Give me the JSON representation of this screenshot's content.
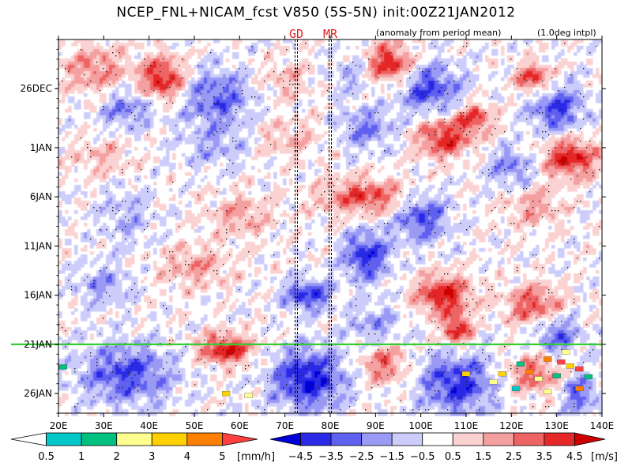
{
  "chart_data": {
    "type": "heatmap",
    "title": "NCEP_FNL+NICAM_fcst V850 (5S-5N) init:00Z21JAN2012",
    "subtitle_left": "(anomaly from period mean)",
    "subtitle_right": "(1.0deg intpl)",
    "x_ticks": [
      "20E",
      "30E",
      "40E",
      "50E",
      "60E",
      "70E",
      "80E",
      "90E",
      "100E",
      "110E",
      "120E",
      "130E",
      "140E"
    ],
    "x_range": [
      20,
      140
    ],
    "y_ticks": [
      {
        "label": "26DEC",
        "day": 5
      },
      {
        "label": "1JAN",
        "day": 11
      },
      {
        "label": "6JAN",
        "day": 16
      },
      {
        "label": "11JAN",
        "day": 21
      },
      {
        "label": "16JAN",
        "day": 26
      },
      {
        "label": "21JAN",
        "day": 31
      },
      {
        "label": "26JAN",
        "day": 36
      }
    ],
    "y_range_days": [
      0,
      38
    ],
    "forecast_start_label": "21JAN",
    "vertical_markers": [
      {
        "label": "GD",
        "lon": 72.5
      },
      {
        "label": "MR",
        "lon": 80
      }
    ],
    "colorbar_precip": {
      "labels": [
        "0.5",
        "1",
        "2",
        "3",
        "4",
        "5"
      ],
      "unit": "[mm/h]",
      "colors": [
        "#ffffff",
        "#00c8c8",
        "#00c080",
        "#ffff90",
        "#ffd000",
        "#ff8000",
        "#ff4040"
      ]
    },
    "colorbar_wind": {
      "labels": [
        "−4.5",
        "−3.5",
        "−2.5",
        "−1.5",
        "−0.5",
        "0.5",
        "1.5",
        "2.5",
        "3.5",
        "4.5"
      ],
      "unit": "[m/s]",
      "colors": [
        "#0000d8",
        "#2a2ae6",
        "#6060f0",
        "#9a9af5",
        "#cdcdfb",
        "#ffffff",
        "#fbd2d2",
        "#f5a0a0",
        "#ee6464",
        "#e42828",
        "#cc0000"
      ]
    },
    "blobs": [
      {
        "lon": 43,
        "day": 4,
        "v": 4.5,
        "rl": 5,
        "rd": 2.2
      },
      {
        "lon": 28,
        "day": 3,
        "v": 2.5,
        "rl": 7,
        "rd": 2.5
      },
      {
        "lon": 35,
        "day": 7,
        "v": -2.5,
        "rl": 6,
        "rd": 2
      },
      {
        "lon": 55,
        "day": 6,
        "v": -3,
        "rl": 8,
        "rd": 3
      },
      {
        "lon": 70,
        "day": 4,
        "v": 1.5,
        "rl": 6,
        "rd": 2
      },
      {
        "lon": 85,
        "day": 3.5,
        "v": -1.5,
        "rl": 5,
        "rd": 2
      },
      {
        "lon": 93,
        "day": 2.5,
        "v": 4.5,
        "rl": 5,
        "rd": 2
      },
      {
        "lon": 102,
        "day": 5,
        "v": -3.5,
        "rl": 7,
        "rd": 2.5
      },
      {
        "lon": 125,
        "day": 4,
        "v": 4,
        "rl": 4,
        "rd": 1.5
      },
      {
        "lon": 130,
        "day": 7,
        "v": -3.5,
        "rl": 6,
        "rd": 2.5
      },
      {
        "lon": 105,
        "day": 10,
        "v": 4,
        "rl": 6,
        "rd": 2
      },
      {
        "lon": 112,
        "day": 8,
        "v": 3.5,
        "rl": 4,
        "rd": 1.5
      },
      {
        "lon": 133,
        "day": 12,
        "v": 4.5,
        "rl": 6,
        "rd": 2
      },
      {
        "lon": 88,
        "day": 9,
        "v": -2.5,
        "rl": 6,
        "rd": 2
      },
      {
        "lon": 70,
        "day": 10,
        "v": 1.5,
        "rl": 8,
        "rd": 2
      },
      {
        "lon": 55,
        "day": 11,
        "v": -1.5,
        "rl": 8,
        "rd": 2
      },
      {
        "lon": 30,
        "day": 12,
        "v": 1.5,
        "rl": 7,
        "rd": 2
      },
      {
        "lon": 120,
        "day": 13,
        "v": -2.5,
        "rl": 5,
        "rd": 2
      },
      {
        "lon": 88,
        "day": 16,
        "v": 3.5,
        "rl": 10,
        "rd": 1.8
      },
      {
        "lon": 100,
        "day": 18,
        "v": -3.5,
        "rl": 6,
        "rd": 2.5
      },
      {
        "lon": 125,
        "day": 17,
        "v": 2,
        "rl": 6,
        "rd": 2
      },
      {
        "lon": 35,
        "day": 18,
        "v": -1.5,
        "rl": 6,
        "rd": 3
      },
      {
        "lon": 60,
        "day": 18,
        "v": 2,
        "rl": 7,
        "rd": 2
      },
      {
        "lon": 88,
        "day": 22,
        "v": -4,
        "rl": 5,
        "rd": 2.5
      },
      {
        "lon": 75,
        "day": 26,
        "v": -4,
        "rl": 5,
        "rd": 1.5
      },
      {
        "lon": 105,
        "day": 26,
        "v": 4.5,
        "rl": 6,
        "rd": 2
      },
      {
        "lon": 125,
        "day": 27,
        "v": 3.5,
        "rl": 6,
        "rd": 2
      },
      {
        "lon": 50,
        "day": 23,
        "v": 2,
        "rl": 8,
        "rd": 2
      },
      {
        "lon": 30,
        "day": 25,
        "v": -2,
        "rl": 6,
        "rd": 2
      },
      {
        "lon": 108,
        "day": 29.5,
        "v": 4.5,
        "rl": 3,
        "rd": 1.5
      },
      {
        "lon": 130,
        "day": 30,
        "v": -3,
        "rl": 5,
        "rd": 2
      },
      {
        "lon": 90,
        "day": 29,
        "v": -2,
        "rl": 6,
        "rd": 2
      },
      {
        "lon": 57,
        "day": 31.5,
        "v": 4.5,
        "rl": 6,
        "rd": 1.5
      },
      {
        "lon": 35,
        "day": 34,
        "v": -3.5,
        "rl": 10,
        "rd": 3
      },
      {
        "lon": 75,
        "day": 34.5,
        "v": -4.5,
        "rl": 8,
        "rd": 3
      },
      {
        "lon": 92,
        "day": 33,
        "v": 3,
        "rl": 5,
        "rd": 2
      },
      {
        "lon": 108,
        "day": 35,
        "v": -4,
        "rl": 8,
        "rd": 3
      },
      {
        "lon": 125,
        "day": 34,
        "v": 3,
        "rl": 6,
        "rd": 2
      },
      {
        "lon": 135,
        "day": 36,
        "v": -3,
        "rl": 4,
        "rd": 2
      }
    ],
    "precip_dots": [
      {
        "lon": 128,
        "day": 32.5,
        "v": 4
      },
      {
        "lon": 131,
        "day": 32.8,
        "v": 5
      },
      {
        "lon": 133,
        "day": 33.2,
        "v": 3
      },
      {
        "lon": 126,
        "day": 34.5,
        "v": 2
      },
      {
        "lon": 130,
        "day": 34.2,
        "v": 1
      },
      {
        "lon": 135,
        "day": 35.5,
        "v": 4
      },
      {
        "lon": 122,
        "day": 33,
        "v": 1
      },
      {
        "lon": 118,
        "day": 34,
        "v": 3
      },
      {
        "lon": 116,
        "day": 34.8,
        "v": 2
      },
      {
        "lon": 110,
        "day": 34,
        "v": 3
      },
      {
        "lon": 135,
        "day": 33.5,
        "v": 5
      },
      {
        "lon": 137,
        "day": 34.3,
        "v": 1
      },
      {
        "lon": 128,
        "day": 35.8,
        "v": 2
      },
      {
        "lon": 21,
        "day": 33.3,
        "v": 1
      },
      {
        "lon": 57,
        "day": 36,
        "v": 3
      },
      {
        "lon": 62,
        "day": 36.2,
        "v": 2
      },
      {
        "lon": 121,
        "day": 35.5,
        "v": 0.5
      },
      {
        "lon": 124,
        "day": 33.8,
        "v": 4
      },
      {
        "lon": 132,
        "day": 31.8,
        "v": 2
      }
    ]
  }
}
